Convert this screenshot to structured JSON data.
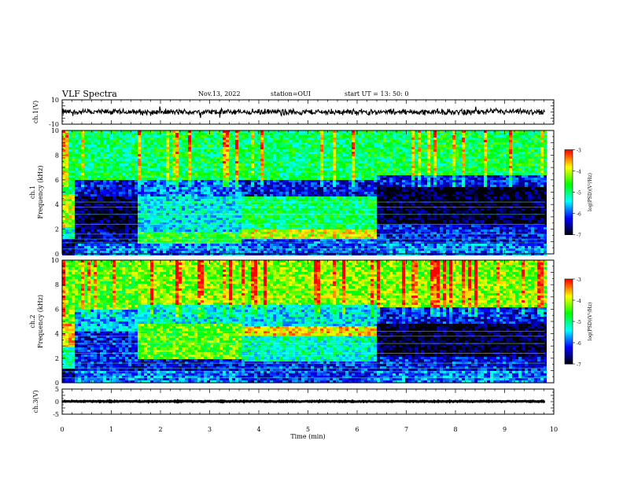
{
  "header": {
    "title": "VLF Spectra",
    "date": "Nov.13, 2022",
    "station": "station=OUI",
    "start": "start  UT =  13: 50: 0"
  },
  "chart_data": [
    {
      "type": "line",
      "ylabel": "ch.1(V)",
      "ylim": [
        -10,
        10
      ],
      "yticks": [
        "10",
        "-10"
      ],
      "xlim": [
        0,
        10
      ],
      "waveform_level": 0,
      "waveform_amplitude": 2
    },
    {
      "type": "heatmap",
      "ylabel": "ch.1\nFrequency (kHz)",
      "ylabel_line1": "ch.1",
      "ylabel_line2": "Frequency  (kHz)",
      "ylim": [
        0,
        10
      ],
      "yticks": [
        "0",
        "2",
        "4",
        "6",
        "8",
        "10"
      ],
      "xlim": [
        0,
        10
      ],
      "data_end_min": 9.82,
      "colorbar": {
        "label": "log(PSD)(V²/Hz)",
        "range": [
          -7,
          -3
        ],
        "ticks": [
          "-3",
          "-4",
          "-5",
          "-6",
          "-7"
        ]
      },
      "segments": [
        {
          "t": [
            0,
            0.2
          ],
          "bands": [
            [
              0,
              1.3,
              -6.6
            ],
            [
              1.3,
              2.2,
              -5.2
            ],
            [
              2.2,
              4.9,
              -4.0
            ],
            [
              4.9,
              10,
              -4.8
            ]
          ]
        },
        {
          "t": [
            0.2,
            1.5
          ],
          "bands": [
            [
              0,
              1.0,
              -5.8
            ],
            [
              1.0,
              2.0,
              -6.5
            ],
            [
              2.0,
              4.8,
              -6.8
            ],
            [
              4.8,
              6.0,
              -6.3
            ],
            [
              6.0,
              10,
              -4.9
            ]
          ]
        },
        {
          "t": [
            1.5,
            3.6
          ],
          "bands": [
            [
              0,
              1.0,
              -5.8
            ],
            [
              1.0,
              1.8,
              -4.6
            ],
            [
              1.8,
              4.8,
              -5.4
            ],
            [
              4.8,
              6.0,
              -5.8
            ],
            [
              6.0,
              10,
              -4.8
            ]
          ]
        },
        {
          "t": [
            3.6,
            6.35
          ],
          "bands": [
            [
              0,
              1.4,
              -6.0
            ],
            [
              1.4,
              2.0,
              -3.9
            ],
            [
              2.0,
              4.7,
              -4.9
            ],
            [
              4.7,
              6.0,
              -6.2
            ],
            [
              6.0,
              10,
              -4.9
            ]
          ]
        },
        {
          "t": [
            6.35,
            9.82
          ],
          "bands": [
            [
              0,
              1.0,
              -5.8
            ],
            [
              1.0,
              2.5,
              -6.2
            ],
            [
              2.5,
              5.5,
              -6.9
            ],
            [
              5.5,
              6.5,
              -6.2
            ],
            [
              6.5,
              10,
              -4.8
            ]
          ]
        }
      ]
    },
    {
      "type": "heatmap",
      "ylabel": "ch.2\nFrequency (kHz)",
      "ylabel_line1": "ch.2",
      "ylabel_line2": "Frequency  (kHz)",
      "ylim": [
        0,
        10
      ],
      "yticks": [
        "0",
        "2",
        "4",
        "6",
        "8",
        "10"
      ],
      "xlim": [
        0,
        10
      ],
      "data_end_min": 9.82,
      "colorbar": {
        "label": "log(PSD)(V²/Hz)",
        "range": [
          -7,
          -3
        ],
        "ticks": [
          "-3",
          "-4",
          "-5",
          "-6",
          "-7"
        ]
      },
      "segments": [
        {
          "t": [
            0,
            0.2
          ],
          "bands": [
            [
              0,
              1.3,
              -6.4
            ],
            [
              1.3,
              3.0,
              -5.0
            ],
            [
              3.0,
              5.0,
              -3.7
            ],
            [
              5.0,
              10,
              -4.3
            ]
          ]
        },
        {
          "t": [
            0.2,
            1.5
          ],
          "bands": [
            [
              0,
              1.0,
              -5.8
            ],
            [
              1.0,
              4.3,
              -6.2
            ],
            [
              4.3,
              6.0,
              -5.6
            ],
            [
              6.0,
              10,
              -4.4
            ]
          ]
        },
        {
          "t": [
            1.5,
            3.6
          ],
          "bands": [
            [
              0,
              1.0,
              -5.8
            ],
            [
              1.0,
              2.0,
              -6.3
            ],
            [
              2.0,
              5.0,
              -4.4
            ],
            [
              5.0,
              6.5,
              -5.3
            ],
            [
              6.5,
              10,
              -4.2
            ]
          ]
        },
        {
          "t": [
            3.6,
            6.35
          ],
          "bands": [
            [
              0,
              1.8,
              -6.1
            ],
            [
              1.8,
              4.0,
              -5.2
            ],
            [
              4.0,
              4.8,
              -3.7
            ],
            [
              4.8,
              6.5,
              -5.4
            ],
            [
              6.5,
              10,
              -4.2
            ]
          ]
        },
        {
          "t": [
            6.35,
            9.82
          ],
          "bands": [
            [
              0,
              1.0,
              -5.8
            ],
            [
              1.0,
              2.2,
              -6.2
            ],
            [
              2.2,
              5.0,
              -6.9
            ],
            [
              5.0,
              6.3,
              -6.2
            ],
            [
              6.3,
              10,
              -4.2
            ]
          ]
        }
      ]
    },
    {
      "type": "line",
      "ylabel": "ch.3(V)",
      "ylim": [
        -5,
        5
      ],
      "yticks": [
        "5",
        "0",
        "-5"
      ],
      "xlim": [
        0,
        10
      ],
      "xticks": [
        "0",
        "1",
        "2",
        "3",
        "4",
        "5",
        "6",
        "7",
        "8",
        "9",
        "10"
      ],
      "xlabel": "Time  (min)",
      "waveform_level": 0.1,
      "waveform_amplitude": 0.15
    }
  ],
  "colors": {
    "colormap": [
      "#ffffff",
      "#000000",
      "#0000ff",
      "#00ffff",
      "#00ff00",
      "#ffff00",
      "#ff0000",
      "#ffffff"
    ]
  }
}
